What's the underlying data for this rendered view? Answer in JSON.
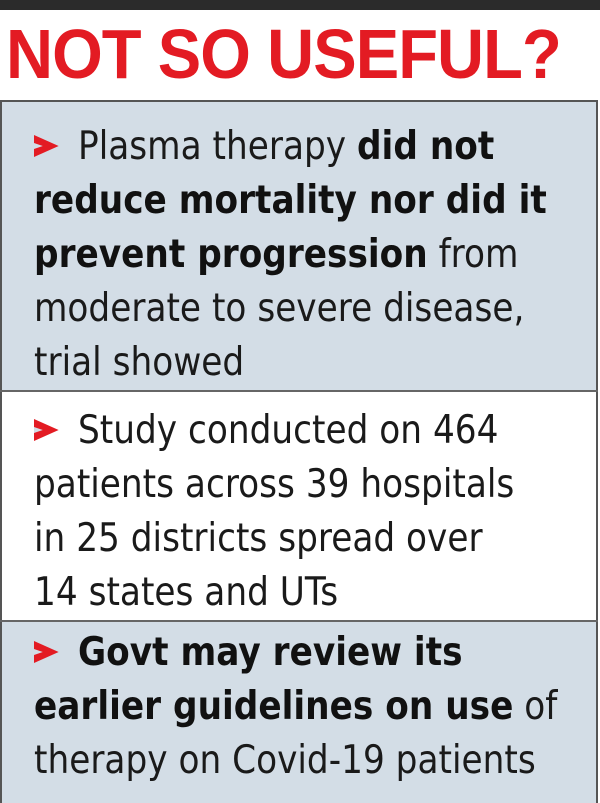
{
  "headline": "NOT SO USEFUL?",
  "colors": {
    "headline": "#e31b23",
    "bullet_arrow": "#e31b23",
    "panel_shaded": "#d3dde6",
    "panel_plain": "#ffffff"
  },
  "icons": {
    "bullet": "red-arrowhead-icon"
  },
  "bullets": [
    {
      "lines": [
        [
          "Plasma therapy ",
          "did not"
        ],
        [
          "reduce mortality nor did it"
        ],
        [
          "prevent progression",
          " from"
        ],
        [
          "moderate to severe disease,"
        ],
        [
          "trial showed"
        ]
      ]
    },
    {
      "lines": [
        [
          "Study conducted on 464"
        ],
        [
          "patients across 39 hospitals"
        ],
        [
          "in 25 districts spread over"
        ],
        [
          "14 states and UTs"
        ]
      ]
    },
    {
      "lines": [
        [
          "Govt may review its"
        ],
        [
          "earlier guidelines on use",
          " of"
        ],
        [
          "therapy on Covid-19 patients"
        ]
      ]
    }
  ]
}
